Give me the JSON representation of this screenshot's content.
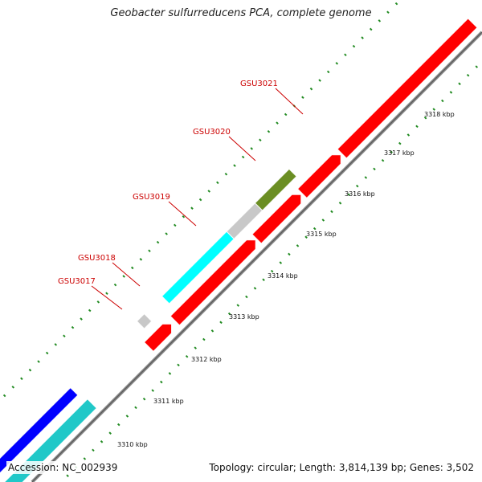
{
  "title": "Geobacter sulfurreducens PCA, complete genome",
  "accession_text": "Accession: NC_002939",
  "summary_text": "Topology: circular; Length: 3,814,139 bp; Genes: 3,502",
  "colors": {
    "forward_cds": "#ff0000",
    "backbone": "#888888",
    "tick_green": "#228b22",
    "gene_olive": "#6b8e23",
    "gene_gray": "#c8c8c8",
    "gene_cyan": "#00ffff",
    "gene_blue": "#0000ff",
    "gene_teal": "#20c8c8",
    "label_red": "#cc0000"
  },
  "gene_labels": [
    "GSU3021",
    "GSU3020",
    "GSU3019",
    "GSU3018",
    "GSU3017"
  ],
  "kbp_labels": [
    "3318 kbp",
    "3317 kbp",
    "3316 kbp",
    "3315 kbp",
    "3314 kbp",
    "3313 kbp",
    "3312 kbp",
    "3311 kbp",
    "3310 kbp"
  ]
}
